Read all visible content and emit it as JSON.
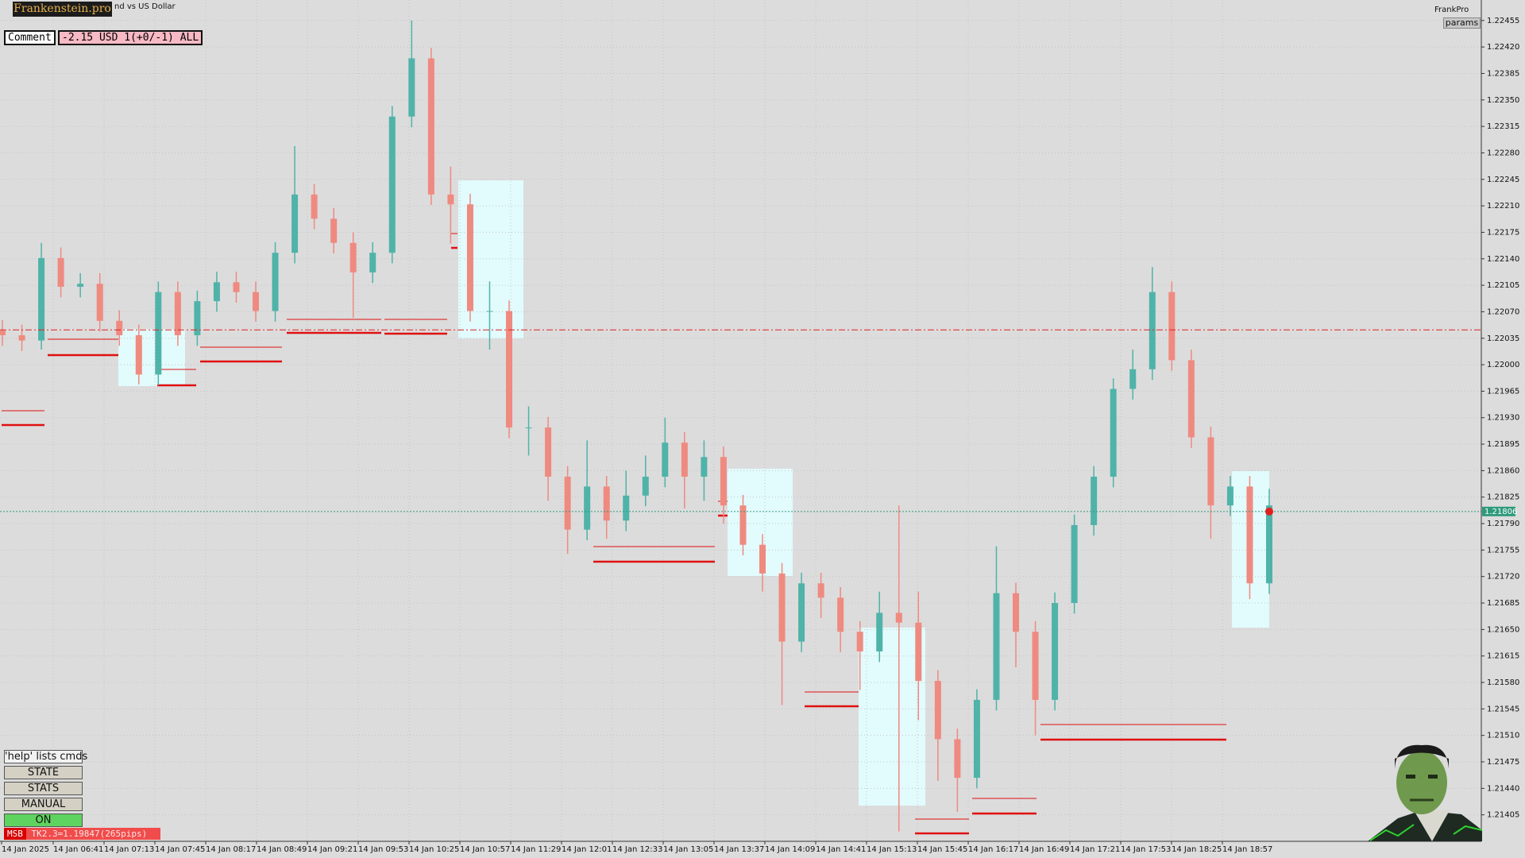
{
  "header": {
    "logo": "Frankenstein.pro",
    "symbol": "nd vs US Dollar",
    "brand": "FrankPro",
    "params": "params"
  },
  "comment": {
    "label": "Comment",
    "text": "-2.15 USD 1(+0/-1) ALL"
  },
  "panel": {
    "help": "'help' lists cmds",
    "buttons": [
      "STATE",
      "STATS",
      "MANUAL",
      "ON"
    ],
    "status_tag": "MSB",
    "status_text": "TK2.3=1.19847(265pips)"
  },
  "chart_data": {
    "type": "candlestick",
    "up_color": "#4fb3a9",
    "down_color": "#ef8a80",
    "grid": true,
    "open": [
      1.22045,
      1.22039,
      1.22032,
      1.22141,
      1.22103,
      1.22107,
      1.22058,
      1.22039,
      1.21987,
      1.22096,
      1.22039,
      1.22084,
      1.22109,
      1.22096,
      1.22071,
      1.22148,
      1.22225,
      1.22193,
      1.22161,
      1.22122,
      1.22148,
      1.22328,
      1.22405,
      1.22225,
      1.22212,
      1.22071,
      1.22071,
      1.21917,
      1.21917,
      1.21852,
      1.21782,
      1.21839,
      1.21794,
      1.21827,
      1.21852,
      1.21897,
      1.21852,
      1.21878,
      1.21814,
      1.21762,
      1.21724,
      1.21634,
      1.21711,
      1.21692,
      1.21647,
      1.21621,
      1.21672,
      1.21659,
      1.21582,
      1.21505,
      1.21454,
      1.21557,
      1.21698,
      1.21647,
      1.21557,
      1.21685,
      1.21788,
      1.21852,
      1.21968,
      1.21994,
      1.22096,
      1.22006,
      1.21904,
      1.21814,
      1.21839,
      1.21711
    ],
    "high": [
      1.22059,
      1.22053,
      1.22161,
      1.22155,
      1.22121,
      1.22121,
      1.22072,
      1.22053,
      1.2211,
      1.2211,
      1.22098,
      1.22123,
      1.22123,
      1.2211,
      1.22162,
      1.22289,
      1.22239,
      1.22207,
      1.22175,
      1.22162,
      1.22342,
      1.22455,
      1.22419,
      1.22262,
      1.22226,
      1.2211,
      1.22085,
      1.21945,
      1.21931,
      1.21866,
      1.219,
      1.21853,
      1.2186,
      1.2188,
      1.2193,
      1.21911,
      1.219,
      1.21892,
      1.21828,
      1.21776,
      1.21738,
      1.21725,
      1.21725,
      1.21706,
      1.21661,
      1.217,
      1.21814,
      1.217,
      1.21596,
      1.21519,
      1.21571,
      1.2176,
      1.21712,
      1.21661,
      1.21699,
      1.21802,
      1.21866,
      1.21982,
      1.2202,
      1.22129,
      1.2211,
      1.2202,
      1.21918,
      1.21853,
      1.21853,
      1.21836
    ],
    "low": [
      1.22025,
      1.22018,
      1.2202,
      1.22089,
      1.22089,
      1.22044,
      1.22025,
      1.21974,
      1.21973,
      1.22025,
      1.22025,
      1.2207,
      1.22082,
      1.22057,
      1.22057,
      1.22134,
      1.22179,
      1.22147,
      1.22062,
      1.22108,
      1.22134,
      1.22314,
      1.22211,
      1.2216,
      1.22057,
      1.2202,
      1.21903,
      1.2188,
      1.2182,
      1.2175,
      1.21768,
      1.2177,
      1.2178,
      1.21813,
      1.21838,
      1.2181,
      1.2182,
      1.2179,
      1.21748,
      1.217,
      1.2155,
      1.2162,
      1.21665,
      1.2162,
      1.2157,
      1.21607,
      1.21383,
      1.2153,
      1.2145,
      1.21409,
      1.2144,
      1.21543,
      1.216,
      1.2151,
      1.21543,
      1.21671,
      1.21774,
      1.21838,
      1.21954,
      1.2198,
      1.21992,
      1.2189,
      1.2177,
      1.218,
      1.2169,
      1.21697
    ],
    "close": [
      1.22039,
      1.22032,
      1.22141,
      1.22103,
      1.22107,
      1.22058,
      1.22039,
      1.21987,
      1.22096,
      1.22039,
      1.22084,
      1.22109,
      1.22096,
      1.22071,
      1.22148,
      1.22225,
      1.22193,
      1.22161,
      1.22122,
      1.22148,
      1.22328,
      1.22405,
      1.22225,
      1.22212,
      1.22071,
      1.22071,
      1.21917,
      1.21917,
      1.21852,
      1.21782,
      1.21839,
      1.21794,
      1.21827,
      1.21852,
      1.21897,
      1.21852,
      1.21878,
      1.21814,
      1.21762,
      1.21724,
      1.21634,
      1.21711,
      1.21692,
      1.21647,
      1.21621,
      1.21672,
      1.21659,
      1.21582,
      1.21505,
      1.21454,
      1.21557,
      1.21698,
      1.21647,
      1.21557,
      1.21685,
      1.21788,
      1.21852,
      1.21968,
      1.21994,
      1.22096,
      1.22006,
      1.21904,
      1.21814,
      1.21839,
      1.21711,
      1.21814
    ],
    "ylim": [
      1.2137,
      1.2248
    ],
    "yticks": [
      1.22455,
      {
        "value": 1.2242,
        "label": "1.22420"
      },
      1.22385,
      {
        "value": 1.2235,
        "label": "1.22350"
      },
      1.22315,
      {
        "value": 1.2228,
        "label": "1.22280"
      },
      1.22245,
      {
        "value": 1.2221,
        "label": "1.22210"
      },
      1.22175,
      {
        "value": 1.2214,
        "label": "1.22140"
      },
      1.22105,
      {
        "value": 1.2207,
        "label": "1.22070"
      },
      1.22035,
      {
        "value": 1.22,
        "label": "1.22000"
      },
      1.21965,
      {
        "value": 1.2193,
        "label": "1.21930"
      },
      1.21895,
      {
        "value": 1.2186,
        "label": "1.21860"
      },
      1.21825,
      {
        "value": 1.2179,
        "label": "1.21790"
      },
      1.21755,
      {
        "value": 1.2172,
        "label": "1.21720"
      },
      1.21685,
      {
        "value": 1.2165,
        "label": "1.21650"
      },
      1.21615,
      {
        "value": 1.2158,
        "label": "1.21580"
      },
      1.21545,
      {
        "value": 1.2151,
        "label": "1.21510"
      },
      1.21475,
      {
        "value": 1.2144,
        "label": "1.21440"
      },
      1.21405
    ],
    "x_labels": [
      "14 Jan 2025",
      "14 Jan 06:41",
      "14 Jan 07:13",
      "14 Jan 07:45",
      "14 Jan 08:17",
      "14 Jan 08:49",
      "14 Jan 09:21",
      "14 Jan 09:53",
      "14 Jan 10:25",
      "14 Jan 10:57",
      "14 Jan 11:29",
      "14 Jan 12:01",
      "14 Jan 12:33",
      "14 Jan 13:05",
      "14 Jan 13:37",
      "14 Jan 14:09",
      "14 Jan 14:41",
      "14 Jan 15:13",
      "14 Jan 15:45",
      "14 Jan 16:17",
      "14 Jan 16:49",
      "14 Jan 17:21",
      "14 Jan 17:53",
      "14 Jan 18:25",
      "14 Jan 18:57"
    ],
    "current_price": 1.21806,
    "level": 1.22046
  }
}
